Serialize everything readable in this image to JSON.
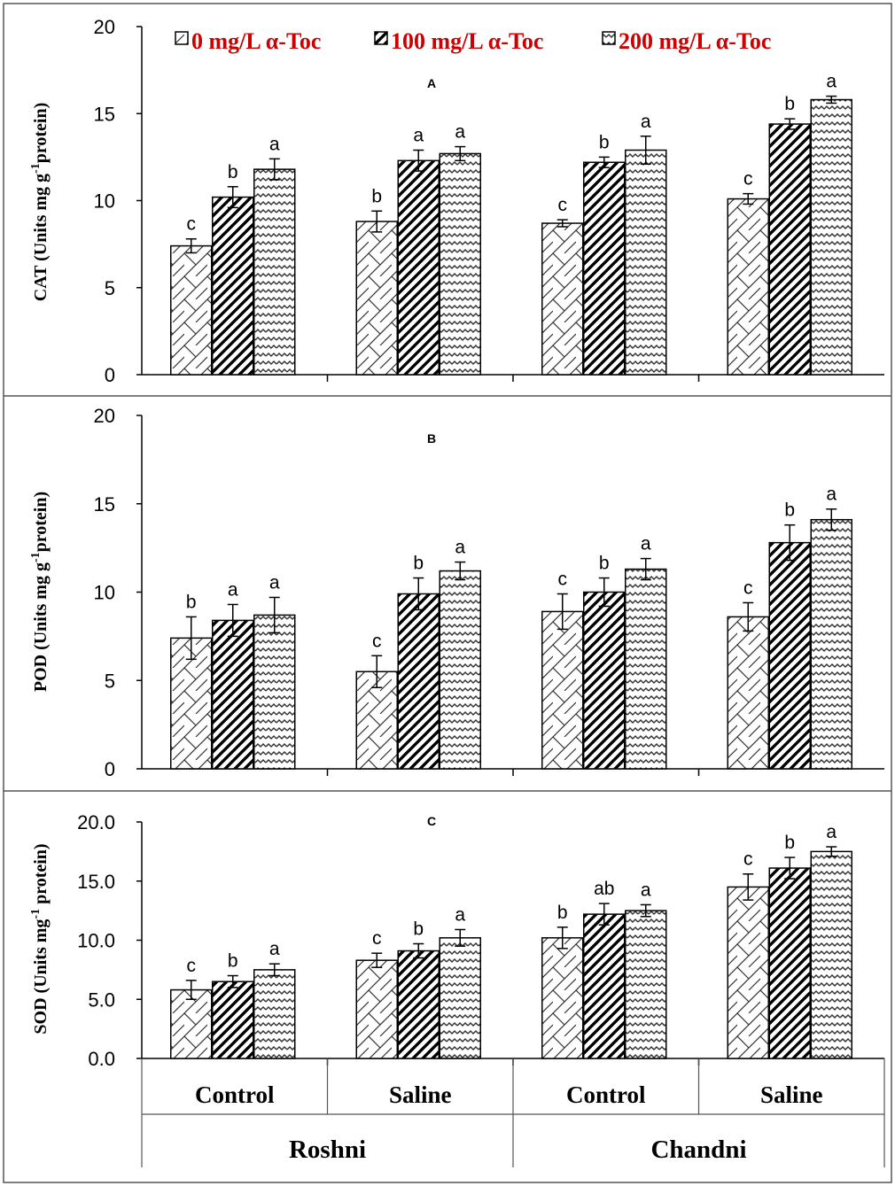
{
  "chart_data": {
    "type": "bar",
    "legend": {
      "placement": "top",
      "entries": [
        "0 mg/L α-Toc",
        "100 mg/L α-Toc",
        "200 mg/L α-Toc"
      ],
      "text_color": "#cc0000"
    },
    "groups": [
      {
        "cultivar": "Roshni",
        "treatment": "Control"
      },
      {
        "cultivar": "Roshni",
        "treatment": "Saline"
      },
      {
        "cultivar": "Chandni",
        "treatment": "Control"
      },
      {
        "cultivar": "Chandni",
        "treatment": "Saline"
      }
    ],
    "treatment_labels": [
      "Control",
      "Saline",
      "Control",
      "Saline"
    ],
    "cultivar_labels": [
      "Roshni",
      "Chandni"
    ],
    "panels": [
      {
        "letter": "A",
        "ylabel_main": "CAT (Units mg g",
        "ylabel_sup": "-1",
        "ylabel_tail": "protein)",
        "ylim": [
          0,
          20
        ],
        "yticks": [
          "0",
          "5",
          "10",
          "15",
          "20"
        ],
        "series": [
          {
            "name": "0 mg/L α-Toc",
            "values": [
              7.4,
              8.8,
              8.7,
              10.1
            ],
            "errors": [
              0.4,
              0.6,
              0.2,
              0.3
            ],
            "letters": [
              "c",
              "b",
              "c",
              "c"
            ]
          },
          {
            "name": "100 mg/L α-Toc",
            "values": [
              10.2,
              12.3,
              12.2,
              14.4
            ],
            "errors": [
              0.6,
              0.6,
              0.3,
              0.3
            ],
            "letters": [
              "b",
              "a",
              "b",
              "b"
            ]
          },
          {
            "name": "200 mg/L α-Toc",
            "values": [
              11.8,
              12.7,
              12.9,
              15.8
            ],
            "errors": [
              0.6,
              0.4,
              0.8,
              0.2
            ],
            "letters": [
              "a",
              "a",
              "a",
              "a"
            ]
          }
        ]
      },
      {
        "letter": "B",
        "ylabel_main": "POD (Units mg g",
        "ylabel_sup": "-1",
        "ylabel_tail": "protein)",
        "ylim": [
          0,
          20
        ],
        "yticks": [
          "0",
          "5",
          "10",
          "15",
          "20"
        ],
        "series": [
          {
            "name": "0 mg/L α-Toc",
            "values": [
              7.4,
              5.5,
              8.9,
              8.6
            ],
            "errors": [
              1.2,
              0.9,
              1.0,
              0.8
            ],
            "letters": [
              "b",
              "c",
              "c",
              "c"
            ]
          },
          {
            "name": "100 mg/L α-Toc",
            "values": [
              8.4,
              9.9,
              10.0,
              12.8
            ],
            "errors": [
              0.9,
              0.9,
              0.8,
              1.0
            ],
            "letters": [
              "a",
              "b",
              "b",
              "b"
            ]
          },
          {
            "name": "200 mg/L α-Toc",
            "values": [
              8.7,
              11.2,
              11.3,
              14.1
            ],
            "errors": [
              1.0,
              0.5,
              0.6,
              0.6
            ],
            "letters": [
              "a",
              "a",
              "a",
              "a"
            ]
          }
        ]
      },
      {
        "letter": "C",
        "ylabel_main": "SOD (Units mg",
        "ylabel_sup": "-1",
        "ylabel_tail": " protein)",
        "ylim": [
          0,
          20
        ],
        "yticks": [
          "0.0",
          "5.0",
          "10.0",
          "15.0",
          "20.0"
        ],
        "series": [
          {
            "name": "0 mg/L α-Toc",
            "values": [
              5.8,
              8.3,
              10.2,
              14.5
            ],
            "errors": [
              0.8,
              0.6,
              0.9,
              1.1
            ],
            "letters": [
              "c",
              "c",
              "b",
              "c"
            ]
          },
          {
            "name": "100 mg/L α-Toc",
            "values": [
              6.5,
              9.1,
              12.2,
              16.1
            ],
            "errors": [
              0.5,
              0.6,
              0.9,
              0.9
            ],
            "letters": [
              "b",
              "b",
              "ab",
              "b"
            ]
          },
          {
            "name": "200 mg/L α-Toc",
            "values": [
              7.5,
              10.2,
              12.5,
              17.5
            ],
            "errors": [
              0.5,
              0.7,
              0.5,
              0.4
            ],
            "letters": [
              "a",
              "a",
              "a",
              "a"
            ]
          }
        ]
      }
    ]
  }
}
